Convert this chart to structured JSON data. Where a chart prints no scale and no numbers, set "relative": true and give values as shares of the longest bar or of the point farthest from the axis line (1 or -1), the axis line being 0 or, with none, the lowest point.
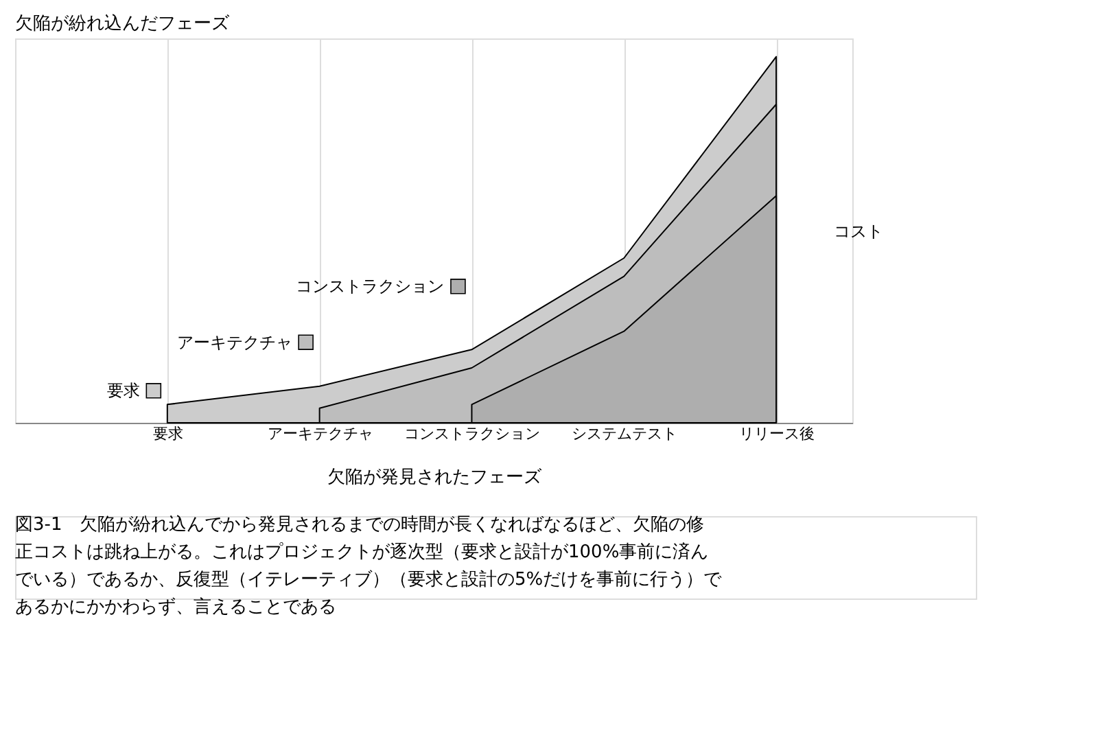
{
  "chart_data": {
    "type": "area",
    "relative": true,
    "categories": [
      "要求",
      "アーキテクチャ",
      "コンストラクション",
      "システムテスト",
      "リリース後"
    ],
    "series": [
      {
        "name": "要求",
        "color": "#cccccc",
        "values": [
          0.05,
          0.1,
          0.2,
          0.45,
          1
        ]
      },
      {
        "name": "アーキテクチャ",
        "color": "#bdbdbd",
        "values": [
          null,
          0.04,
          0.15,
          0.4,
          0.87
        ]
      },
      {
        "name": "コンストラクション",
        "color": "#aeaeae",
        "values": [
          null,
          null,
          0.05,
          0.25,
          0.62
        ]
      }
    ],
    "legend_title": "欠陥が紛れ込んだフェーズ",
    "xlabel": "欠陥が発見されたフェーズ",
    "ylabel": "コスト",
    "annotations": [
      "図3-1　欠陥が紛れ込んでから発見されるまでの時間が長くなればなるほど、欠陥の修正コストは跳ね上がる。これはプロジェクトが逐次型（要求と設計が100%事前に済んでいる）であるか、反復型（イテレーティブ）（要求と設計の5%だけを事前に行う）であるかにかかわらず、言えることである"
    ],
    "grid": "x",
    "legend": "left"
  }
}
